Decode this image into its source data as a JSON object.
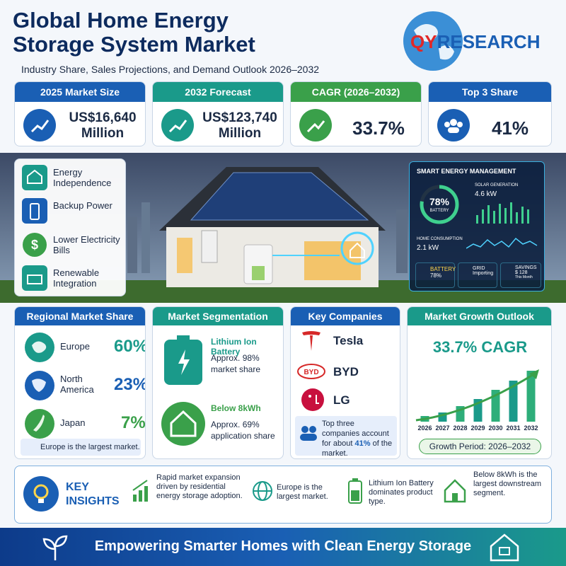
{
  "header": {
    "title_line1": "Global Home Energy",
    "title_line2": "Storage System Market",
    "subtitle": "Industry Share, Sales Projections, and Demand Outlook 2026–2032",
    "logo_prefix": "QY",
    "logo_suffix": "RESEARCH"
  },
  "stats": [
    {
      "label": "2025 Market Size",
      "value": "US$16,640",
      "unit": "Million"
    },
    {
      "label": "2032 Forecast",
      "value": "US$123,740",
      "unit": "Million"
    },
    {
      "label": "CAGR (2026–2032)",
      "value": "33.7%"
    },
    {
      "label": "Top 3 Share",
      "value": "41%"
    }
  ],
  "benefits": [
    "Energy Independence",
    "Backup Power",
    "Lower Electricity Bills",
    "Renewable Integration"
  ],
  "dashboard": {
    "title": "SMART ENERGY MANAGEMENT",
    "battery_pct": "78%",
    "battery_label": "BATTERY",
    "solar_label": "SOLAR GENERATION",
    "solar_value": "4.6 kW",
    "home_label": "HOME CONSUMPTION",
    "home_value": "2.1 kW",
    "tiles": [
      {
        "label": "BATTERY",
        "value": "78%"
      },
      {
        "label": "GRID",
        "value": "Importing"
      },
      {
        "label": "SAVINGS",
        "value": "$ 128",
        "note": "This Month"
      }
    ]
  },
  "regional": {
    "title": "Regional Market Share",
    "rows": [
      {
        "region": "Europe",
        "share": "60%"
      },
      {
        "region": "North America",
        "share": "23%"
      },
      {
        "region": "Japan",
        "share": "7%"
      }
    ],
    "note": "Europe is the largest market."
  },
  "segmentation": {
    "title": "Market Segmentation",
    "items": [
      {
        "name": "Lithium Ion Battery",
        "desc": "Approx. 98% market share"
      },
      {
        "name": "Below 8kWh",
        "desc": "Approx. 69% application share"
      }
    ]
  },
  "companies": {
    "title": "Key Companies",
    "names": [
      "Tesla",
      "BYD",
      "LG"
    ],
    "note_before": "Top three companies account for about",
    "note_highlight": "41%",
    "note_after": "of the market."
  },
  "growth": {
    "title": "Market Growth Outlook",
    "headline": "33.7% CAGR",
    "years": [
      "2026",
      "2027",
      "2028",
      "2029",
      "2030",
      "2031",
      "2032"
    ],
    "values": [
      8,
      13,
      22,
      32,
      45,
      58,
      72
    ],
    "period": "Growth Period: 2026–2032"
  },
  "insights": {
    "heading": "KEY INSIGHTS",
    "items": [
      "Rapid market expansion driven by residential energy storage adoption.",
      "Europe is the largest market.",
      "Lithium Ion Battery dominates product type.",
      "Below 8kWh is the largest downstream segment."
    ]
  },
  "footer": "Empowering Smarter Homes with Clean Energy Storage"
}
